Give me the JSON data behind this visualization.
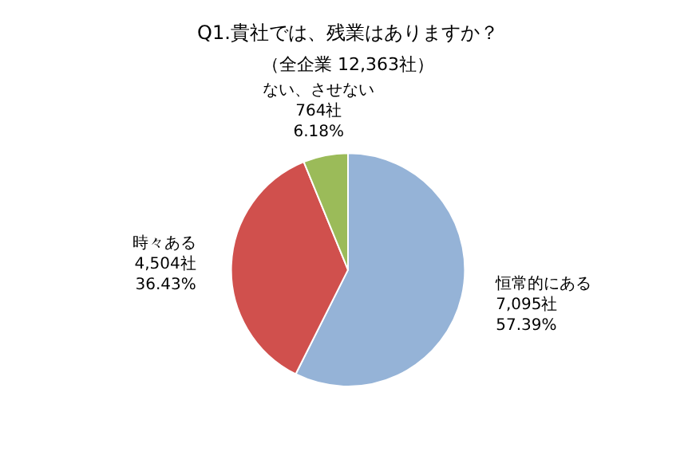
{
  "chart_data": {
    "type": "pie",
    "title": "Q1.貴社では、残業はありますか？",
    "subtitle": "（全企業 12,363社）",
    "categories": [
      "恒常的にある",
      "時々ある",
      "ない、させない"
    ],
    "values": [
      7095,
      4504,
      764
    ],
    "colors": [
      "#95b3d7",
      "#d0504d",
      "#9bbb59"
    ],
    "value_labels": [
      "7,095社\n57.39%",
      "4,504社\n36.43%",
      "764社\n6.18%"
    ],
    "legend": false
  }
}
